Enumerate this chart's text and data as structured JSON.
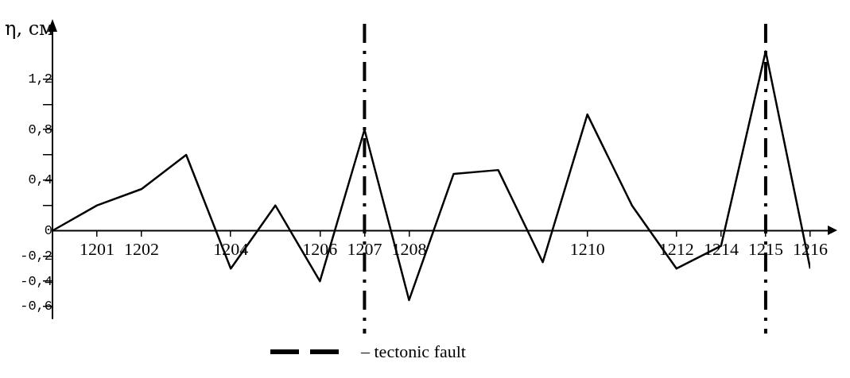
{
  "chart_data": {
    "type": "line",
    "ylabel": "η, см",
    "color": "#000000",
    "categories": [
      null,
      "1201",
      "1202",
      null,
      "1204",
      null,
      "1206",
      "1207",
      "1208",
      null,
      null,
      null,
      "1210",
      null,
      "1212",
      "1214",
      "1215",
      "1216"
    ],
    "values": [
      0,
      0.2,
      0.33,
      0.6,
      -0.3,
      0.2,
      -0.4,
      0.8,
      -0.55,
      0.45,
      0.48,
      -0.25,
      0.92,
      0.2,
      -0.3,
      -0.12,
      1.42,
      -0.3
    ],
    "ylim": [
      -0.7,
      1.6
    ],
    "yticks": [
      {
        "value": -0.6,
        "label": "-0,6"
      },
      {
        "value": -0.4,
        "label": "-0,4"
      },
      {
        "value": -0.2,
        "label": "-0,2"
      },
      {
        "value": 0,
        "label": "0"
      },
      {
        "value": 0.2,
        "label": null
      },
      {
        "value": 0.4,
        "label": "0,4"
      },
      {
        "value": 0.6,
        "label": null
      },
      {
        "value": 0.8,
        "label": "0,8"
      },
      {
        "value": 1.0,
        "label": null
      },
      {
        "value": 1.2,
        "label": "1,2"
      }
    ],
    "ref_lines": [
      {
        "axis": "x",
        "value": "1207",
        "label": "– tectonic fault",
        "line_style": "dashdot"
      },
      {
        "axis": "x",
        "value": "1215",
        "line_style": "dashdot"
      }
    ],
    "grid": false,
    "legend": "bottom",
    "marker": "none",
    "line_style": "solid"
  }
}
